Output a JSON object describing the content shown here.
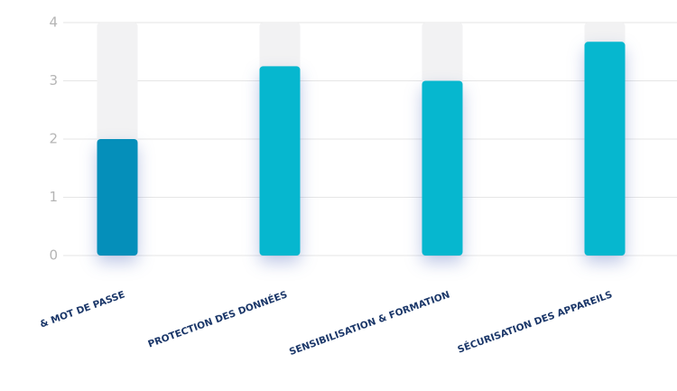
{
  "chart_data": {
    "type": "bar",
    "categories": [
      "& MOT DE PASSE",
      "PROTECTION DES DONNÉES",
      "SENSIBILISATION & FORMATION",
      "SÉCURISATION DES APPAREILS"
    ],
    "values": [
      2,
      3.25,
      3,
      3.67
    ],
    "colors": [
      "#058fba",
      "#06b7cf",
      "#06b7cf",
      "#06b7cf"
    ],
    "ylim": [
      0,
      4
    ],
    "yticks": [
      0,
      1,
      2,
      3,
      4
    ],
    "grid": true
  }
}
